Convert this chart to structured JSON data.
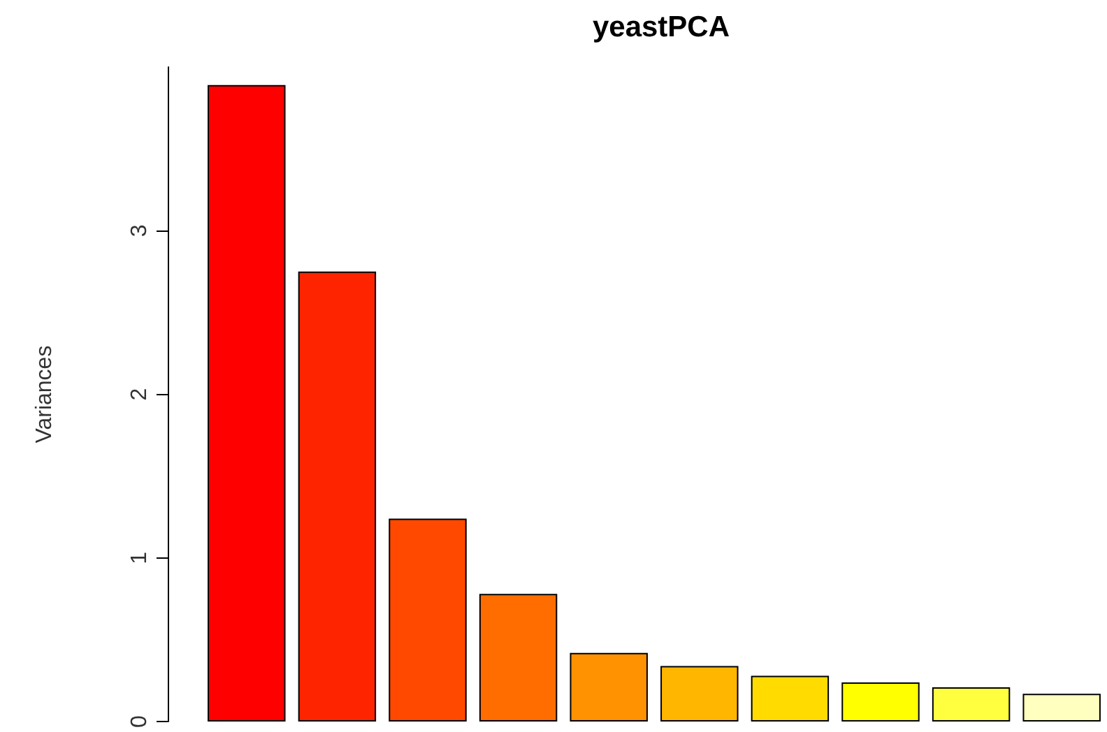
{
  "chart_data": {
    "type": "bar",
    "title": "yeastPCA",
    "ylabel": "Variances",
    "categories": [
      null,
      null,
      null,
      null,
      null,
      null,
      null,
      null,
      null,
      null
    ],
    "values": [
      3.89,
      2.75,
      1.24,
      0.78,
      0.42,
      0.34,
      0.28,
      0.24,
      0.21,
      0.17
    ],
    "colors": [
      "#ff0000",
      "#ff2400",
      "#ff4900",
      "#ff6d00",
      "#ff9200",
      "#ffb600",
      "#ffdb00",
      "#ffff00",
      "#ffff40",
      "#ffffbf"
    ],
    "ylim": [
      0,
      4
    ],
    "yticks": [
      0,
      1,
      2,
      3
    ],
    "tick_labels": "y"
  }
}
